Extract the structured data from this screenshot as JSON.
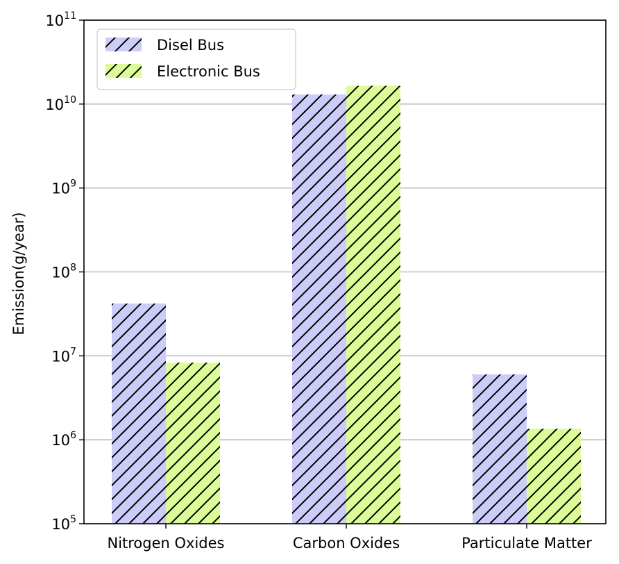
{
  "chart_data": {
    "type": "bar",
    "title": "",
    "xlabel": "",
    "ylabel": "Emission(g/year)",
    "yscale": "log",
    "ylim": [
      100000,
      100000000000
    ],
    "yticks": [
      {
        "exp": "5",
        "value": 100000
      },
      {
        "exp": "6",
        "value": 1000000
      },
      {
        "exp": "7",
        "value": 10000000
      },
      {
        "exp": "8",
        "value": 100000000
      },
      {
        "exp": "9",
        "value": 1000000000
      },
      {
        "exp": "10",
        "value": 10000000000
      },
      {
        "exp": "11",
        "value": 100000000000
      }
    ],
    "tick_base": "10",
    "grid": "horizontal",
    "legend_position": "top-left",
    "categories": [
      "Nitrogen Oxides",
      "Carbon Oxides",
      "Particulate Matter"
    ],
    "series": [
      {
        "name": "Disel Bus",
        "color": "#ccccf8",
        "hatch": "diagonal",
        "values": [
          42000000,
          13000000000,
          6000000
        ]
      },
      {
        "name": "Electronic Bus",
        "color": "#dcfc98",
        "hatch": "diagonal",
        "values": [
          8300000,
          16500000000,
          1350000
        ]
      }
    ]
  }
}
